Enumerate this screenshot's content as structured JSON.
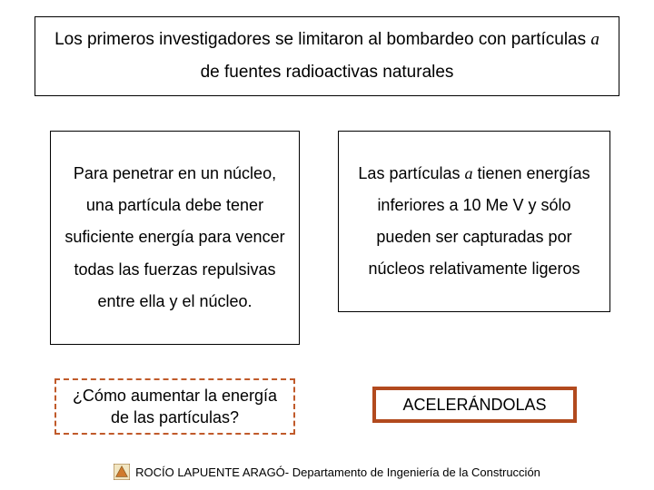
{
  "colors": {
    "page_bg": "#ffffff",
    "border_black": "#000000",
    "dashed_border": "#c05a2a",
    "accel_border": "#b24a1e",
    "text": "#000000",
    "logo_bg": "#f2e6c2",
    "logo_tri": "#d07a2e",
    "logo_stroke": "#8a5a20"
  },
  "top": {
    "text": "Los primeros investigadores se limitaron al bombardeo con partículas α de fuentes radioactivas naturales"
  },
  "left": {
    "text": "Para penetrar en un núcleo, una partícula debe tener suficiente energía para vencer todas las fuerzas repulsivas entre ella y el núcleo."
  },
  "right": {
    "text": "Las partículas α tienen energías inferiores a 10 Me V y sólo pueden ser capturadas por núcleos relativamente ligeros"
  },
  "question": {
    "text": "¿Cómo aumentar la energía de las partículas?"
  },
  "answer": {
    "text": "ACELERÁNDOLAS"
  },
  "footer": {
    "text": "ROCÍO LAPUENTE ARAGÓ- Departamento de Ingeniería de la Construcción"
  }
}
